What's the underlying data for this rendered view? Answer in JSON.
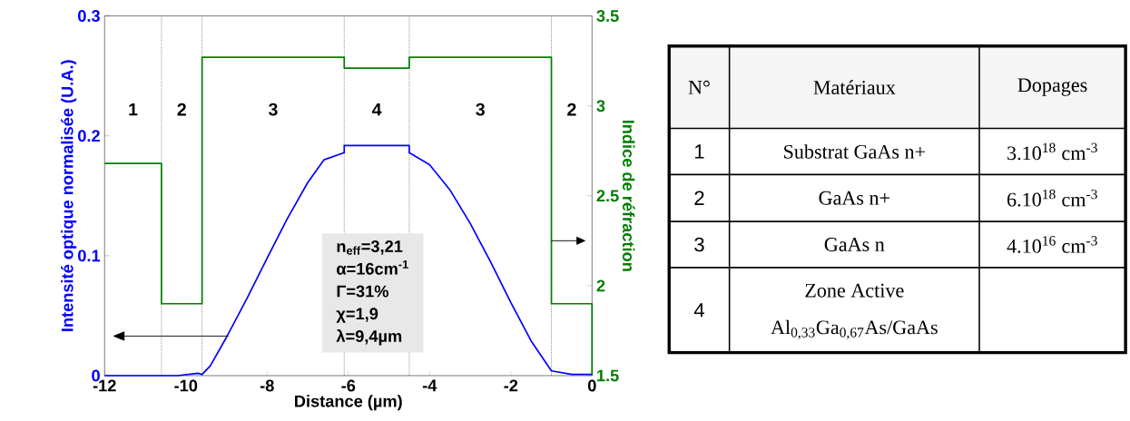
{
  "chart_data": [
    {
      "type": "line",
      "xlabel": "Distance (µm)",
      "ylabel": "Intensité optique normalisée (U.A.)",
      "y2label": "Indice de réfraction",
      "xlim": [
        -12,
        0
      ],
      "xticks": [
        -12,
        -10,
        -8,
        -6,
        -4,
        -2,
        0
      ],
      "ylim": [
        0,
        0.3
      ],
      "yticks": [
        0,
        0.1,
        0.2,
        0.3
      ],
      "y2lim": [
        1.5,
        3.5
      ],
      "y2ticks": [
        1.5,
        2,
        2.5,
        3,
        3.5
      ],
      "grid": false,
      "series": [
        {
          "color": "#0000ff",
          "x": [
            -12,
            -10.2,
            -9.7,
            -9.6,
            -9.4,
            -9.0,
            -8.5,
            -8.0,
            -7.5,
            -7.0,
            -6.6,
            -6.1,
            -6.1,
            -4.5,
            -4.5,
            -4.0,
            -3.5,
            -3.0,
            -2.5,
            -2.0,
            -1.5,
            -1.0,
            -0.5,
            0
          ],
          "values": [
            0,
            0,
            0.002,
            0.001,
            0.008,
            0.032,
            0.064,
            0.098,
            0.131,
            0.161,
            0.18,
            0.186,
            0.192,
            0.192,
            0.186,
            0.176,
            0.155,
            0.127,
            0.095,
            0.061,
            0.029,
            0.004,
            0.001,
            0.001
          ]
        },
        {
          "color": "#007f00",
          "axis": "y2",
          "x": [
            -12,
            -10.6,
            -10.6,
            -9.6,
            -9.6,
            -6.1,
            -6.1,
            -4.5,
            -4.5,
            -1.0,
            -1.0,
            0,
            0
          ],
          "values": [
            2.68,
            2.68,
            1.9,
            1.9,
            3.27,
            3.27,
            3.21,
            3.21,
            3.27,
            3.27,
            1.9,
            1.9,
            1.5
          ]
        }
      ],
      "ref_lines": [
        {
          "axis": "x",
          "value": -10.6,
          "color": "#000000",
          "line_style": "dotted"
        },
        {
          "axis": "x",
          "value": -9.6,
          "color": "#000000",
          "line_style": "dotted"
        },
        {
          "axis": "x",
          "value": -6.1,
          "color": "#000000",
          "line_style": "dotted"
        },
        {
          "axis": "x",
          "value": -4.5,
          "color": "#000000",
          "line_style": "dotted"
        },
        {
          "axis": "x",
          "value": -1.0,
          "color": "#000000",
          "line_style": "dotted"
        }
      ],
      "annotations": [
        "1",
        "2",
        "3",
        "4",
        "3",
        "2",
        "n$_{eff}$=3,21",
        "α=16cm$^{-1}$",
        "Γ=31%",
        "χ=1,9",
        "λ=9,4µm"
      ]
    },
    {
      "type": "other",
      "annotations": [
        "N°",
        "Matériaux",
        "Dopages",
        "1",
        "Substrat GaAs n+",
        "3.10$^{18}$ cm$^{-3}$",
        "2",
        "GaAs n+",
        "6.10$^{18}$ cm$^{-3}$",
        "3",
        "GaAs n",
        "4.10$^{16}$ cm$^{-3}$",
        "4",
        "Zone Active",
        "Al$_{0,33}$Ga$_{0,67}$As/GaAs"
      ]
    }
  ]
}
